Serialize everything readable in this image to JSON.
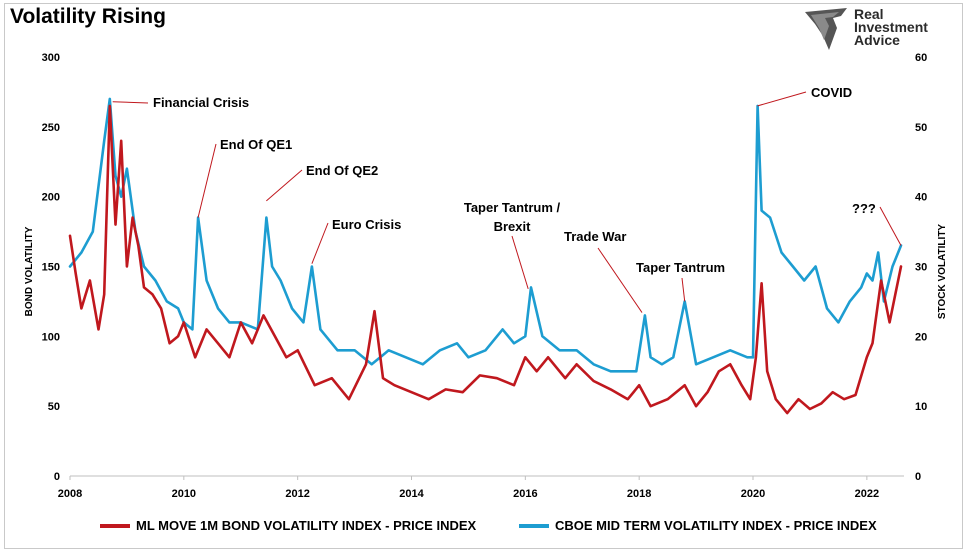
{
  "title": "Volatility Rising",
  "logo": {
    "line1": "Real",
    "line2": "Investment",
    "line3": "Advice"
  },
  "legend": {
    "bond": "ML MOVE 1M BOND VOLATILITY INDEX - PRICE INDEX",
    "stock": "CBOE MID TERM VOLATILITY INDEX - PRICE INDEX"
  },
  "colors": {
    "bond": "#c0181e",
    "stock": "#1d9dd1",
    "annotation": "#c0181e"
  },
  "chart_data": {
    "type": "line",
    "title": "Volatility Rising",
    "xlabel": "",
    "ylabel_left": "BOND VOLATILITY",
    "ylabel_right": "STOCK VOLATILITY",
    "x_ticks": [
      "2008",
      "2010",
      "2012",
      "2014",
      "2016",
      "2018",
      "2020",
      "2022"
    ],
    "y_left_ticks": [
      "0",
      "50",
      "100",
      "150",
      "200",
      "250",
      "300"
    ],
    "y_right_ticks": [
      "0",
      "10",
      "20",
      "30",
      "40",
      "50",
      "60"
    ],
    "xlim": [
      2008,
      2022.6
    ],
    "ylim_left": [
      0,
      300
    ],
    "ylim_right": [
      0,
      60
    ],
    "grid": false,
    "legend_position": "bottom",
    "series": [
      {
        "name": "ML MOVE 1M BOND VOLATILITY INDEX - PRICE INDEX",
        "axis": "left",
        "x": [
          2008.0,
          2008.1,
          2008.2,
          2008.35,
          2008.5,
          2008.6,
          2008.7,
          2008.8,
          2008.9,
          2009.0,
          2009.1,
          2009.2,
          2009.3,
          2009.45,
          2009.6,
          2009.75,
          2009.9,
          2010.0,
          2010.2,
          2010.4,
          2010.6,
          2010.8,
          2011.0,
          2011.2,
          2011.4,
          2011.6,
          2011.8,
          2012.0,
          2012.3,
          2012.6,
          2012.9,
          2013.2,
          2013.35,
          2013.5,
          2013.7,
          2014.0,
          2014.3,
          2014.6,
          2014.9,
          2015.2,
          2015.5,
          2015.8,
          2016.0,
          2016.2,
          2016.4,
          2016.7,
          2016.9,
          2017.2,
          2017.5,
          2017.8,
          2018.0,
          2018.2,
          2018.5,
          2018.8,
          2019.0,
          2019.2,
          2019.4,
          2019.6,
          2019.8,
          2019.95,
          2020.05,
          2020.15,
          2020.25,
          2020.4,
          2020.6,
          2020.8,
          2021.0,
          2021.2,
          2021.4,
          2021.6,
          2021.8,
          2022.0,
          2022.1,
          2022.25,
          2022.4,
          2022.5,
          2022.6
        ],
        "values": [
          172,
          145,
          120,
          140,
          105,
          130,
          265,
          180,
          240,
          150,
          185,
          165,
          135,
          130,
          120,
          95,
          100,
          110,
          85,
          105,
          95,
          85,
          110,
          95,
          115,
          100,
          85,
          90,
          65,
          70,
          55,
          80,
          118,
          70,
          65,
          60,
          55,
          62,
          60,
          72,
          70,
          65,
          85,
          75,
          85,
          70,
          80,
          68,
          62,
          55,
          65,
          50,
          55,
          65,
          50,
          60,
          75,
          80,
          65,
          55,
          85,
          138,
          75,
          55,
          45,
          55,
          48,
          52,
          60,
          55,
          58,
          85,
          95,
          140,
          110,
          130,
          150
        ]
      },
      {
        "name": "CBOE MID TERM VOLATILITY INDEX - PRICE INDEX",
        "axis": "right",
        "x": [
          2008.0,
          2008.2,
          2008.4,
          2008.6,
          2008.7,
          2008.8,
          2008.9,
          2009.0,
          2009.15,
          2009.3,
          2009.5,
          2009.7,
          2009.9,
          2010.0,
          2010.15,
          2010.25,
          2010.4,
          2010.6,
          2010.8,
          2011.0,
          2011.3,
          2011.45,
          2011.55,
          2011.7,
          2011.9,
          2012.1,
          2012.25,
          2012.4,
          2012.7,
          2013.0,
          2013.3,
          2013.6,
          2013.9,
          2014.2,
          2014.5,
          2014.8,
          2015.0,
          2015.3,
          2015.6,
          2015.8,
          2016.0,
          2016.1,
          2016.3,
          2016.6,
          2016.9,
          2017.2,
          2017.5,
          2017.8,
          2017.95,
          2018.1,
          2018.2,
          2018.4,
          2018.6,
          2018.8,
          2019.0,
          2019.3,
          2019.6,
          2019.9,
          2020.0,
          2020.08,
          2020.15,
          2020.3,
          2020.5,
          2020.7,
          2020.9,
          2021.1,
          2021.3,
          2021.5,
          2021.7,
          2021.9,
          2022.0,
          2022.1,
          2022.2,
          2022.3,
          2022.45,
          2022.6
        ],
        "values": [
          30,
          32,
          35,
          48,
          54,
          43,
          40,
          44,
          35,
          30,
          28,
          25,
          24,
          22,
          21,
          37,
          28,
          24,
          22,
          22,
          21,
          37,
          30,
          28,
          24,
          22,
          30,
          21,
          18,
          18,
          16,
          18,
          17,
          16,
          18,
          19,
          17,
          18,
          21,
          19,
          20,
          27,
          20,
          18,
          18,
          16,
          15,
          15,
          15,
          23,
          17,
          16,
          17,
          25,
          16,
          17,
          18,
          17,
          17,
          53,
          38,
          37,
          32,
          30,
          28,
          30,
          24,
          22,
          25,
          27,
          29,
          28,
          32,
          25,
          30,
          33
        ]
      }
    ],
    "annotations": [
      {
        "text": "Financial Crisis",
        "x": 2008.75,
        "y": 268
      },
      {
        "text": "End Of QE1",
        "x": 2010.25,
        "y": 185
      },
      {
        "text": "End Of QE2",
        "x": 2011.45,
        "y": 197
      },
      {
        "text": "Euro Crisis",
        "x": 2012.25,
        "y": 152
      },
      {
        "text": "Taper Tantrum /",
        "text2": "Brexit",
        "x": 2016.05,
        "y": 134
      },
      {
        "text": "Trade War",
        "x": 2018.05,
        "y": 117
      },
      {
        "text": "Taper Tantrum",
        "x": 2018.8,
        "y": 125
      },
      {
        "text": "COVID",
        "x": 2020.08,
        "y": 265
      },
      {
        "text": "???",
        "x": 2022.6,
        "y": 165
      }
    ]
  }
}
